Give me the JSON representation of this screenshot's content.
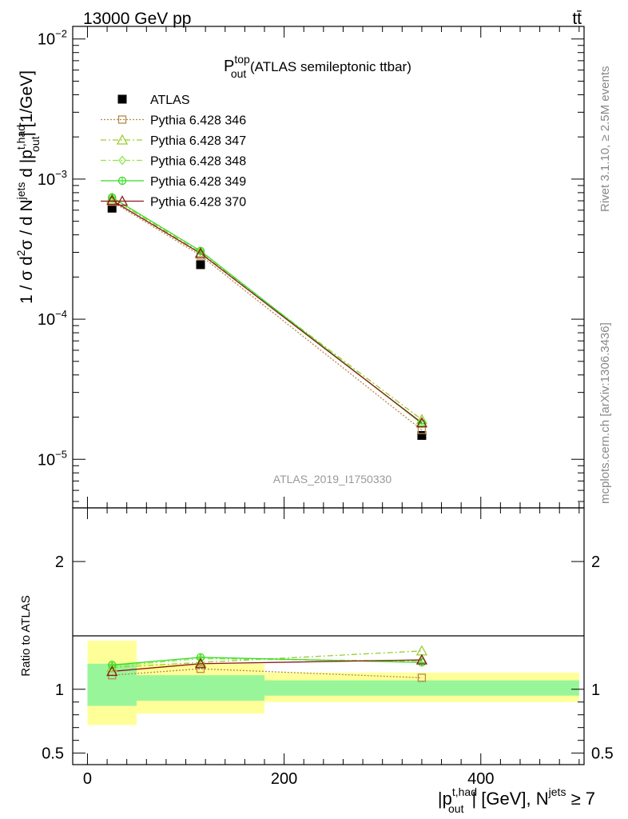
{
  "header": {
    "energy_label": "13000 GeV pp",
    "process_label": "tt̄"
  },
  "side_labels": {
    "rivet": "Rivet 3.1.10, ≥ 2.5M events",
    "mcplots": "mcplots.cern.ch [arXiv:1306.3436]"
  },
  "chart_data": [
    {
      "type": "line",
      "panel": "main",
      "title": "P_out^top (ATLAS semileptonic ttbar)",
      "title_main": "P",
      "title_sup": "top",
      "title_sub": "out",
      "title_rest": " (ATLAS semileptonic ttbar)",
      "analysis_label": "ATLAS_2019_I1750330",
      "ylabel": "1 / σ d²σ / d N^jets d |p_out^t,had| [1/GeV]",
      "ylabel_parts": {
        "a": "1 / σ d",
        "a_sup": "2",
        "b": "σ / d N",
        "b_sup": "jets",
        "c": " d |p",
        "c_sup": "t,had",
        "c_sub": "out",
        "d": "| [1/GeV]"
      },
      "y_scale": "log",
      "ylim": [
        4.5e-06,
        0.0123
      ],
      "xlim": [
        -15,
        505
      ],
      "y_ticks": [
        {
          "value": 1e-05,
          "base": "10",
          "exp": "−5"
        },
        {
          "value": 0.0001,
          "base": "10",
          "exp": "−4"
        },
        {
          "value": 0.001,
          "base": "10",
          "exp": "−3"
        },
        {
          "value": 0.01,
          "base": "10",
          "exp": "−2"
        }
      ],
      "legend_position": "top-left",
      "series": [
        {
          "name": "ATLAS",
          "color": "#000000",
          "marker": "filled-square",
          "line": "none",
          "x": [
            25,
            115,
            340
          ],
          "y": [
            0.00062,
            0.000245,
            1.48e-05
          ]
        },
        {
          "name": "Pythia 6.428 346",
          "color": "#b58a4a",
          "marker": "open-square",
          "line": "dotted",
          "x": [
            25,
            115,
            340
          ],
          "y": [
            0.00069,
            0.000285,
            1.62e-05
          ]
        },
        {
          "name": "Pythia 6.428 347",
          "color": "#9acd32",
          "marker": "open-triangle",
          "line": "dashdot",
          "x": [
            25,
            115,
            340
          ],
          "y": [
            0.00073,
            0.000297,
            1.92e-05
          ]
        },
        {
          "name": "Pythia 6.428 348",
          "color": "#8ee64a",
          "marker": "open-diamond",
          "line": "dashdot",
          "x": [
            25,
            115,
            340
          ],
          "y": [
            0.000735,
            0.000305,
            1.81e-05
          ]
        },
        {
          "name": "Pythia 6.428 349",
          "color": "#33dd22",
          "marker": "open-circle-cross",
          "line": "solid",
          "x": [
            25,
            115,
            340
          ],
          "y": [
            0.00074,
            0.000307,
            1.8e-05
          ]
        },
        {
          "name": "Pythia 6.428 370",
          "color": "#8b1a1a",
          "marker": "open-triangle",
          "line": "solid",
          "x": [
            25,
            115,
            340
          ],
          "y": [
            0.000705,
            0.000295,
            1.82e-05
          ]
        }
      ]
    },
    {
      "type": "line",
      "panel": "ratio",
      "ylabel": "Ratio to ATLAS",
      "xlabel": "|p_out^t,had| [GeV], N^jets ≥ 7",
      "xlabel_parts": {
        "a": "|p",
        "a_sup": "t,had",
        "a_sub": "out",
        "b": "| [GeV], N",
        "b_sup": "jets",
        "c": " ≥ 7"
      },
      "ylim": [
        0.41,
        2.42
      ],
      "xlim": [
        -15,
        505
      ],
      "y_ticks": [
        {
          "value": 0.5,
          "label": "0.5"
        },
        {
          "value": 1,
          "label": "1"
        },
        {
          "value": 2,
          "label": "2"
        }
      ],
      "x_ticks": [
        {
          "value": 0,
          "label": "0"
        },
        {
          "value": 200,
          "label": "200"
        },
        {
          "value": 400,
          "label": "400"
        }
      ],
      "bands": [
        {
          "x0": 0,
          "x1": 50,
          "stat": [
            0.87,
            1.2
          ],
          "total": [
            0.72,
            1.38
          ]
        },
        {
          "x0": 50,
          "x1": 180,
          "stat": [
            0.91,
            1.11
          ],
          "total": [
            0.81,
            1.2
          ]
        },
        {
          "x0": 180,
          "x1": 500,
          "stat": [
            0.95,
            1.07
          ],
          "total": [
            0.9,
            1.13
          ]
        }
      ],
      "series": [
        {
          "name": "Pythia 6.428 346",
          "x": [
            25,
            115,
            340
          ],
          "y": [
            1.11,
            1.16,
            1.09
          ]
        },
        {
          "name": "Pythia 6.428 347",
          "x": [
            25,
            115,
            340
          ],
          "y": [
            1.17,
            1.21,
            1.3
          ]
        },
        {
          "name": "Pythia 6.428 348",
          "x": [
            25,
            115,
            340
          ],
          "y": [
            1.18,
            1.24,
            1.22
          ]
        },
        {
          "name": "Pythia 6.428 349",
          "x": [
            25,
            115,
            340
          ],
          "y": [
            1.19,
            1.25,
            1.21
          ]
        },
        {
          "name": "Pythia 6.428 370",
          "x": [
            25,
            115,
            340
          ],
          "y": [
            1.14,
            1.2,
            1.23
          ]
        }
      ]
    }
  ]
}
